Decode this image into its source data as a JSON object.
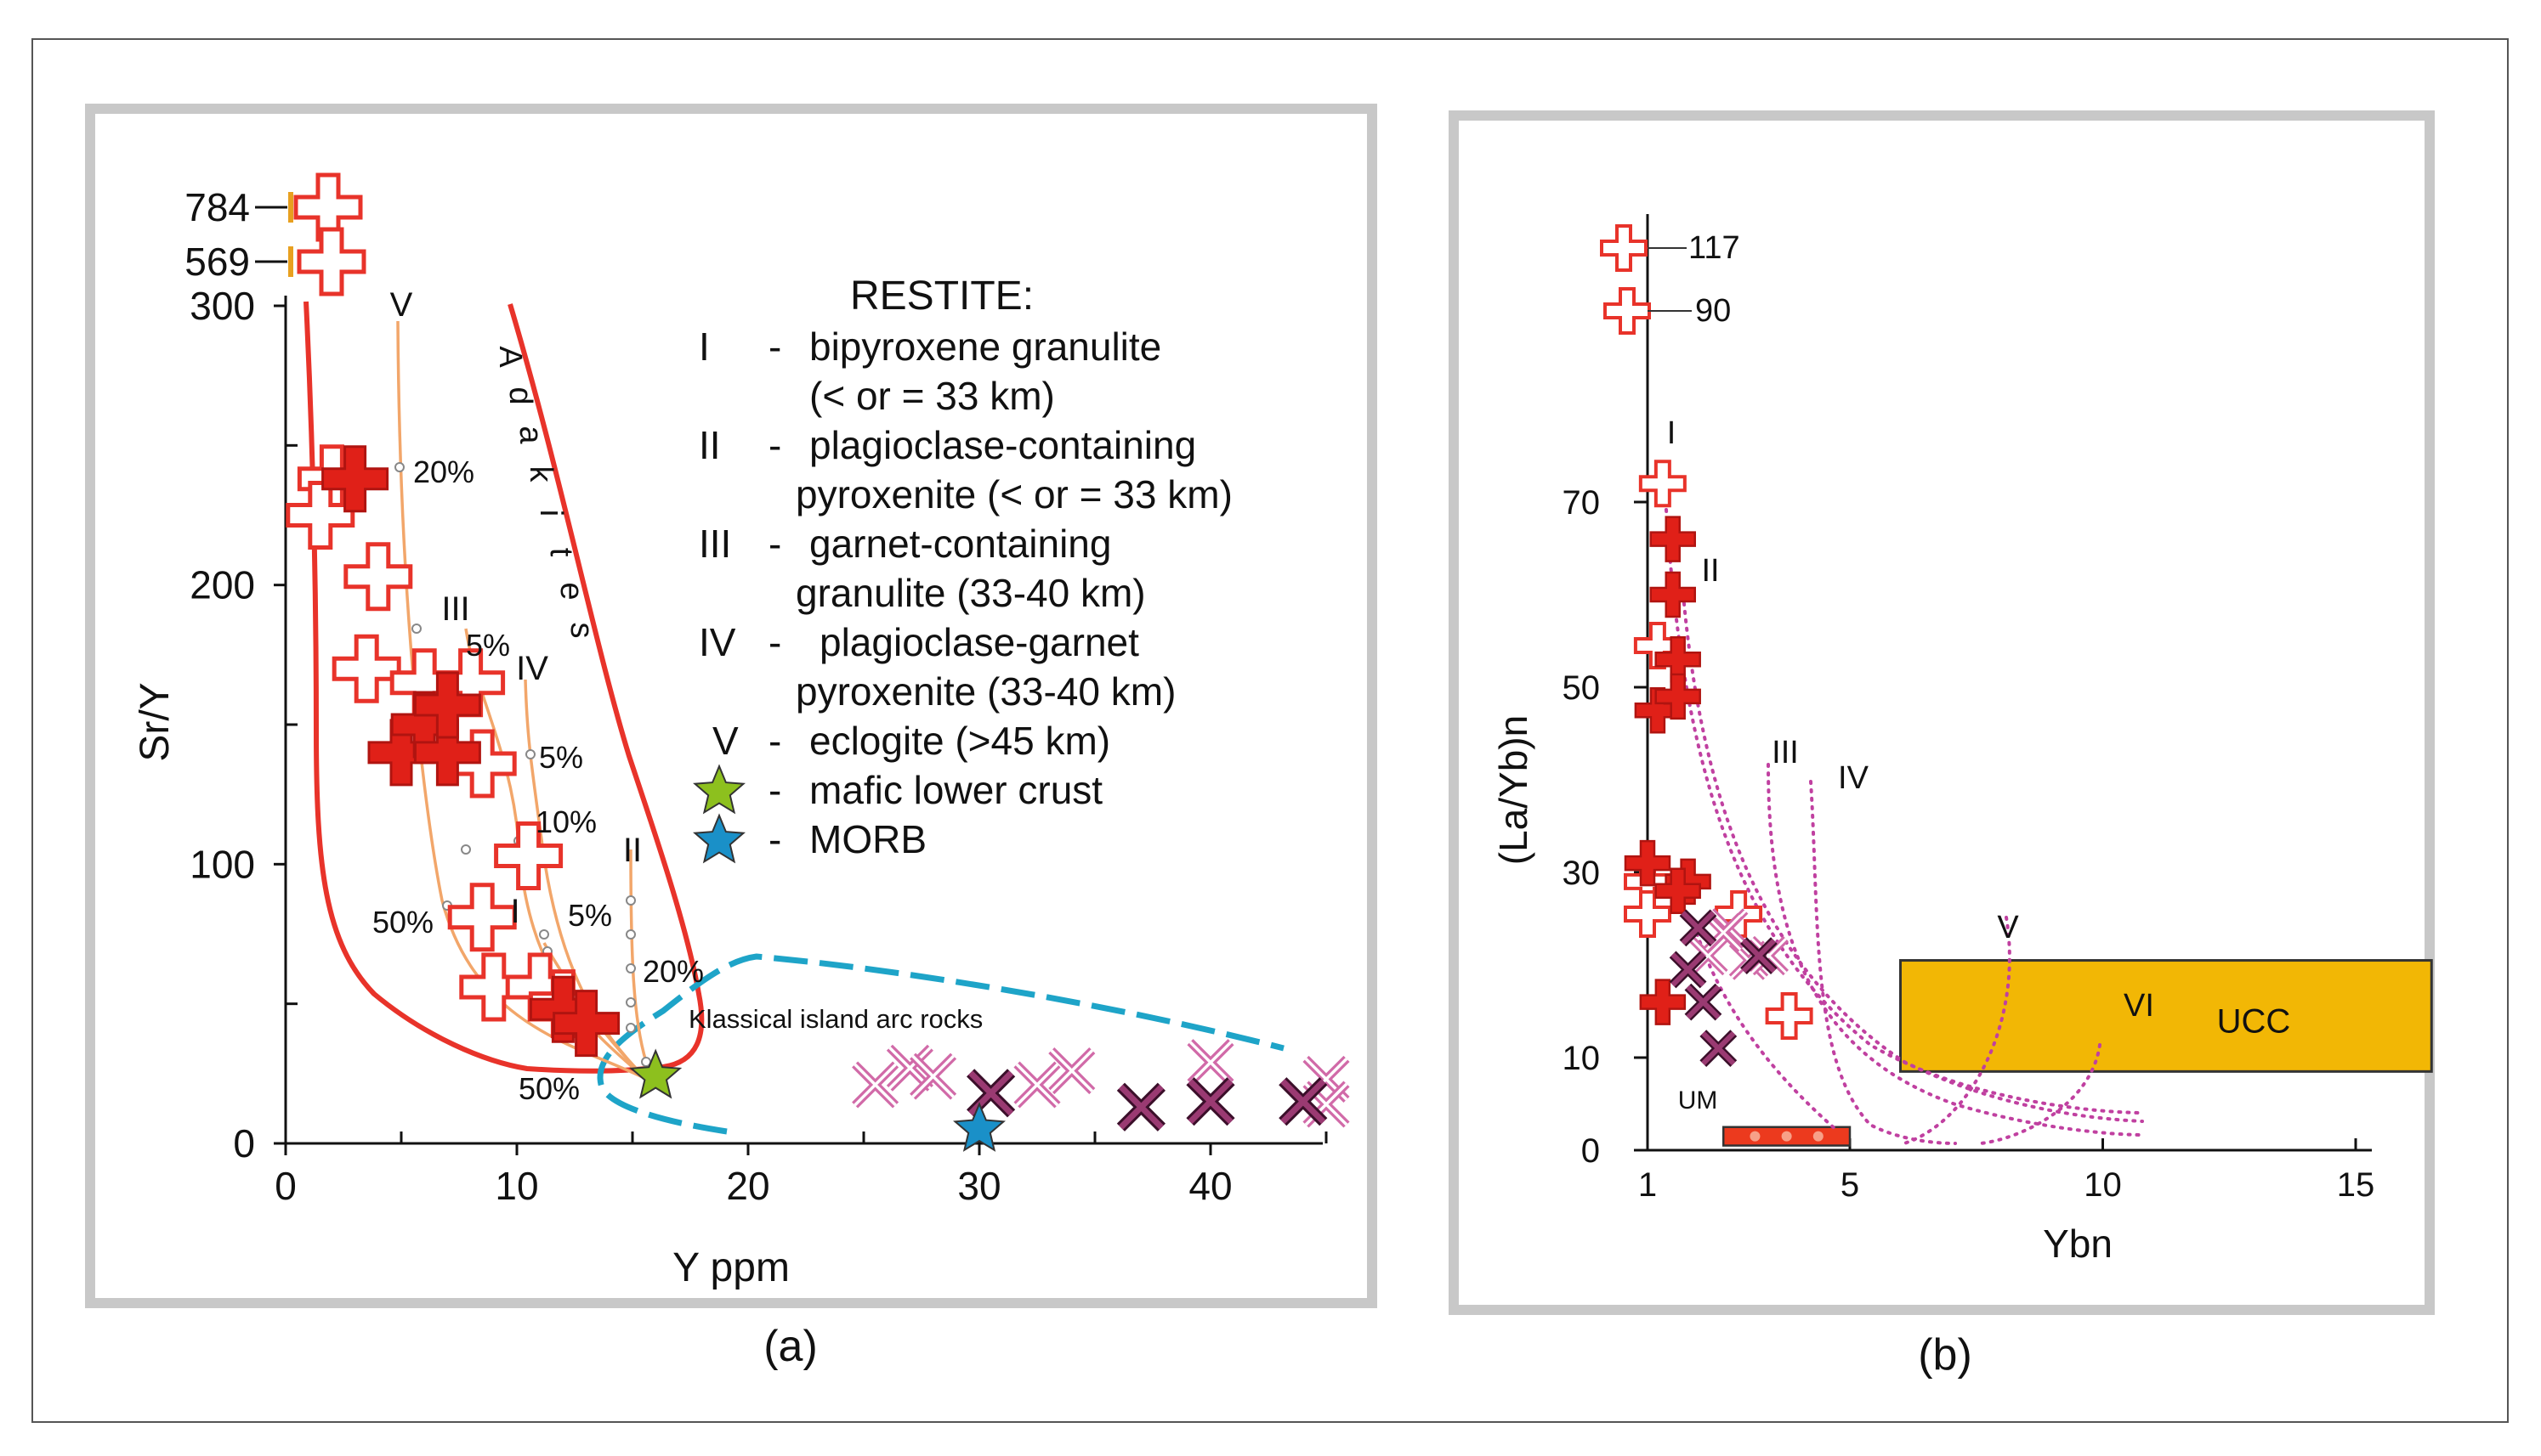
{
  "colors": {
    "open_cross": "#e8332a",
    "solid_cross": "#e02018",
    "adakite_curve": "#e8332a",
    "arc_field": "#1ea4c8",
    "paths_a": "#f2a66a",
    "paths_b": "#c040a0",
    "x_light": "#d16aa8",
    "x_dark": "#7d2a5c",
    "star_green": "#8dc01e",
    "star_blue": "#1a90c8",
    "ucc_fill": "#f2b705",
    "um_fill": "#ec3a1e",
    "frame": "#c8c8c8"
  },
  "icons": {
    "open": "open-cross-icon",
    "solid": "solid-cross-icon",
    "star": "star-icon",
    "x": "x-mark-icon"
  },
  "chart_data": [
    {
      "type": "scatter",
      "panel_label": "(a)",
      "xlabel": "Y ppm",
      "ylabel": "Sr/Y",
      "xlim": [
        0,
        46
      ],
      "ylim": [
        0,
        300
      ],
      "x_ticks": [
        "0",
        "10",
        "20",
        "30",
        "40"
      ],
      "x_tick_values": [
        0,
        10,
        20,
        30,
        40
      ],
      "y_ticks": [
        "0",
        "100",
        "200",
        "300"
      ],
      "y_tick_values": [
        0,
        100,
        200,
        300
      ],
      "y_break_labels": [
        "569",
        "784"
      ],
      "vertical_field_label": "Adakites",
      "field_label": "Klassical island arc rocks",
      "legend": {
        "title": "RESTITE:",
        "items": [
          {
            "num": "I",
            "text": "bipyroxene granulite",
            "text2": "(< or = 33 km)"
          },
          {
            "num": "II",
            "text": "plagioclase-containing",
            "text2": "pyroxenite (< or = 33 km)"
          },
          {
            "num": "III",
            "text": "garnet-containing",
            "text2": "granulite (33-40 km)"
          },
          {
            "num": "IV",
            "text": "plagioclase-garnet",
            "text2": "pyroxenite (33-40 km)"
          },
          {
            "num": "V",
            "text": "eclogite (>45 km)",
            "text2": ""
          },
          {
            "num": "",
            "text": "mafic lower crust",
            "text2": ""
          },
          {
            "num": "",
            "text": "MORB",
            "text2": ""
          }
        ]
      },
      "path_labels": [
        "I",
        "II",
        "III",
        "IV",
        "V"
      ],
      "percent_labels": [
        "20%",
        "5%",
        "5%",
        "10%",
        "50%",
        "5%",
        "20%",
        "50%"
      ],
      "open_crosses": [
        [
          2,
          238
        ],
        [
          4,
          203
        ],
        [
          3.5,
          170
        ],
        [
          6,
          165
        ],
        [
          8,
          165
        ],
        [
          8.5,
          136
        ],
        [
          10.5,
          103
        ],
        [
          8.5,
          81
        ],
        [
          9,
          56
        ],
        [
          11,
          56
        ],
        [
          12,
          50
        ],
        [
          1.5,
          225
        ]
      ],
      "solid_crosses": [
        [
          3,
          238
        ],
        [
          5,
          140
        ],
        [
          6,
          150
        ],
        [
          7,
          140
        ],
        [
          7,
          157
        ],
        [
          12,
          48
        ],
        [
          13,
          43
        ]
      ],
      "x_light": [
        [
          25.5,
          21
        ],
        [
          27,
          27
        ],
        [
          28,
          24
        ],
        [
          32.5,
          21
        ],
        [
          34,
          26
        ],
        [
          40,
          29
        ],
        [
          45,
          23
        ],
        [
          45,
          14
        ]
      ],
      "x_dark": [
        [
          30.5,
          18
        ],
        [
          37,
          13
        ],
        [
          40,
          15
        ],
        [
          44,
          15
        ]
      ],
      "stars": {
        "mafic_lower_crust": [
          16,
          24
        ],
        "morb": [
          30,
          5
        ]
      },
      "break_points": [
        [
          2,
          290
        ],
        [
          2,
          310
        ]
      ]
    },
    {
      "type": "scatter",
      "panel_label": "(b)",
      "xlabel": "Ybn",
      "ylabel": "(La/Yb)n",
      "xlim": [
        1,
        18
      ],
      "ylim": [
        0,
        100
      ],
      "x_ticks": [
        "1",
        "5",
        "10",
        "15"
      ],
      "x_tick_values": [
        1,
        5,
        10,
        15
      ],
      "y_ticks": [
        "0",
        "10",
        "30",
        "50",
        "70"
      ],
      "y_tick_values": [
        0,
        10,
        30,
        50,
        70
      ],
      "y_break_labels": [
        "90",
        "117"
      ],
      "path_labels": [
        "I",
        "II",
        "III",
        "IV",
        "V",
        "VI"
      ],
      "box_labels": {
        "ucc": "UCC",
        "um": "UM"
      },
      "ucc_box": {
        "x": [
          6,
          16.5
        ],
        "y": [
          8.5,
          20.5
        ]
      },
      "um_box": {
        "x": [
          2.5,
          5
        ],
        "y": [
          0.5,
          2.5
        ]
      },
      "open_crosses": [
        [
          1.3,
          72
        ],
        [
          1.2,
          54.5
        ],
        [
          1,
          29
        ],
        [
          1,
          25.5
        ],
        [
          2.8,
          25.5
        ],
        [
          3.8,
          14.5
        ]
      ],
      "solid_crosses": [
        [
          1.5,
          66
        ],
        [
          1.5,
          60
        ],
        [
          1.6,
          53
        ],
        [
          1.2,
          47.5
        ],
        [
          1.6,
          49
        ],
        [
          1,
          31
        ],
        [
          1.8,
          29
        ],
        [
          1.6,
          28
        ],
        [
          1.3,
          16
        ]
      ],
      "x_light": [
        [
          2.6,
          24
        ],
        [
          2.2,
          21
        ],
        [
          3,
          20.5
        ],
        [
          3.4,
          21
        ],
        [
          2.5,
          23.5
        ]
      ],
      "x_dark": [
        [
          2,
          24
        ],
        [
          1.8,
          19.5
        ],
        [
          2.1,
          16
        ],
        [
          2.4,
          11
        ],
        [
          3.2,
          21
        ]
      ],
      "break_points": [
        [
          0.8,
          95
        ],
        [
          0.8,
          102
        ]
      ]
    }
  ]
}
